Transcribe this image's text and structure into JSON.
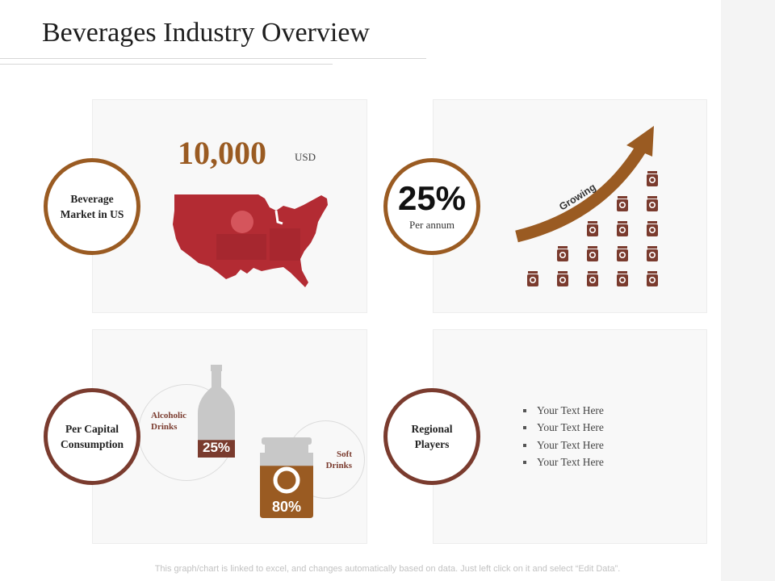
{
  "page": {
    "title": "Beverages Industry Overview",
    "footer": "This graph/chart is linked to excel, and changes automatically based on data. Just left click on it and select “Edit Data”."
  },
  "market": {
    "label": "Beverage Market in US",
    "value": "10,000",
    "unit": "USD",
    "icon": "us-map-icon"
  },
  "growth": {
    "percent": "25%",
    "period": "Per annum",
    "arrow_label": "Growing",
    "icon": "growth-arrow-icon",
    "can_counts": [
      1,
      2,
      3,
      4,
      5
    ]
  },
  "consumption": {
    "label": "Per Capital Consumption",
    "alcoholic": {
      "label": "Alcoholic Drinks",
      "value": "25%",
      "fill": 0.25
    },
    "soft": {
      "label": "Soft Drinks",
      "value": "80%",
      "fill": 0.8
    }
  },
  "regional": {
    "label": "Regional Players",
    "items": [
      "Your Text Here",
      "Your Text Here",
      "Your Text Here",
      "Your Text Here"
    ]
  },
  "colors": {
    "brown": "#9a5b22",
    "maroon": "#7a3b2e",
    "red": "#b32b33",
    "panel": "#f8f8f8"
  }
}
